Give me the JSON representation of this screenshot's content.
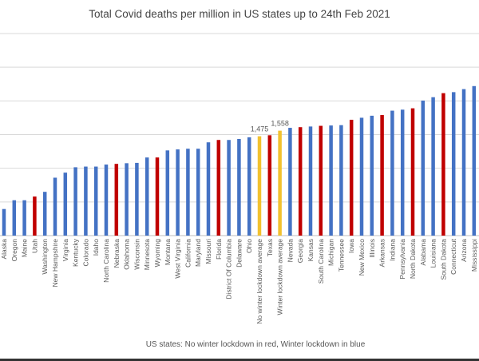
{
  "chart_data": {
    "type": "bar",
    "title": "Total Covid deaths per million in US states up to 24th Feb 2021",
    "xlabel": "US states: No winter lockdown in red, Winter lockdown in blue",
    "ylabel": "",
    "ylim": [
      0,
      3000
    ],
    "grid_step": 500,
    "grid": true,
    "colors": {
      "winter_lockdown": "#4472C4",
      "no_winter_lockdown": "#C00000",
      "average": "#F2C12E"
    },
    "categories": [
      "Alaska",
      "Oregon",
      "Maine",
      "Utah",
      "Washington",
      "New Hampshire",
      "Virginia",
      "Kentucky",
      "Colorado",
      "Idaho",
      "North Carolina",
      "Nebraska",
      "Oklahoma",
      "Wisconsin",
      "Minnesota",
      "Wyoming",
      "Montana",
      "West Virginia",
      "California",
      "Maryland",
      "Missouri",
      "Florida",
      "District Of Columbia",
      "Delaware",
      "Ohio",
      "No winter lockdown average",
      "Texas",
      "Winter lockdown average",
      "Nevada",
      "Georgia",
      "Kansas",
      "South Carolina",
      "Michigan",
      "Tennessee",
      "Iowa",
      "New Mexico",
      "Illinois",
      "Arkansas",
      "Indiana",
      "Pennsylvania",
      "North Dakota",
      "Alabama",
      "Louisiana",
      "South Dakota",
      "Connecticut",
      "Arizona",
      "Mississippi"
    ],
    "values": [
      395,
      525,
      525,
      580,
      650,
      860,
      935,
      1015,
      1025,
      1025,
      1055,
      1065,
      1075,
      1080,
      1160,
      1160,
      1265,
      1280,
      1290,
      1290,
      1385,
      1420,
      1420,
      1435,
      1460,
      1475,
      1490,
      1558,
      1600,
      1610,
      1620,
      1630,
      1635,
      1640,
      1720,
      1750,
      1780,
      1790,
      1855,
      1870,
      1890,
      2005,
      2055,
      2115,
      2130,
      2175,
      2220
    ],
    "group": [
      "blue",
      "blue",
      "blue",
      "red",
      "blue",
      "blue",
      "blue",
      "blue",
      "blue",
      "blue",
      "blue",
      "red",
      "blue",
      "blue",
      "blue",
      "red",
      "blue",
      "blue",
      "blue",
      "blue",
      "blue",
      "red",
      "blue",
      "blue",
      "blue",
      "avg",
      "red",
      "avg",
      "blue",
      "red",
      "blue",
      "red",
      "blue",
      "blue",
      "red",
      "blue",
      "blue",
      "red",
      "blue",
      "blue",
      "red",
      "blue",
      "blue",
      "red",
      "blue",
      "blue",
      "blue"
    ],
    "data_labels": {
      "No winter lockdown average": "1,475",
      "Winter lockdown average": "1,558"
    }
  }
}
